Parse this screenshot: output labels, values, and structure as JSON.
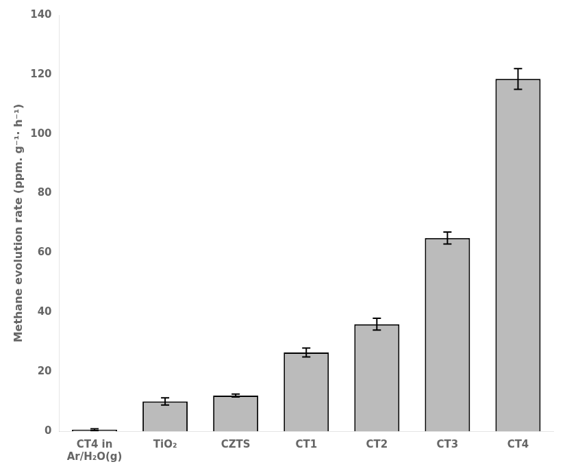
{
  "chart_data": {
    "type": "bar",
    "ylabel": "Methane evolution rate (ppm. g⁻¹· h⁻¹)",
    "categories": [
      "CT4 in\nAr/H₂O(g)",
      "TiO₂",
      "CZTS",
      "CT1",
      "CT2",
      "CT3",
      "CT4"
    ],
    "values": [
      0.5,
      10.0,
      12.0,
      26.5,
      36.0,
      65.0,
      118.5
    ],
    "errors": [
      0.3,
      1.2,
      0.5,
      1.5,
      2.0,
      2.0,
      3.5
    ],
    "color": "#BBBBBB",
    "ylim": [
      0,
      140
    ],
    "yticks": [
      0,
      20,
      40,
      60,
      80,
      100,
      120,
      140
    ],
    "grid": false
  }
}
